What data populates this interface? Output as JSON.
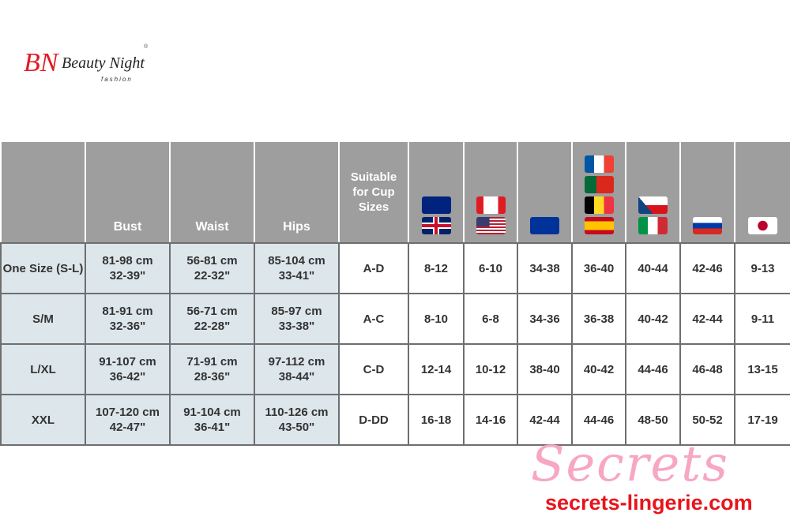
{
  "brand": {
    "logo_text": "Beauty Night",
    "logo_sub": "fashion",
    "monogram": "BN"
  },
  "table": {
    "headers": [
      "",
      "Bust",
      "Waist",
      "Hips",
      "Suitable for Cup Sizes"
    ],
    "flag_columns": [
      [
        "australia",
        "uk"
      ],
      [
        "canada",
        "usa"
      ],
      [
        "eu"
      ],
      [
        "france",
        "portugal",
        "belgium",
        "spain"
      ],
      [
        "czech",
        "italy"
      ],
      [
        "russia"
      ],
      [
        "japan"
      ]
    ],
    "rows": [
      {
        "size": "One Size (S-L)",
        "bust": [
          "81-98 cm",
          "32-39\""
        ],
        "waist": [
          "56-81 cm",
          "22-32\""
        ],
        "hips": [
          "85-104 cm",
          "33-41\""
        ],
        "cup": "A-D",
        "sizes": [
          "8-12",
          "6-10",
          "34-38",
          "36-40",
          "40-44",
          "42-46",
          "9-13"
        ]
      },
      {
        "size": "S/M",
        "bust": [
          "81-91 cm",
          "32-36\""
        ],
        "waist": [
          "56-71 cm",
          "22-28\""
        ],
        "hips": [
          "85-97 cm",
          "33-38\""
        ],
        "cup": "A-C",
        "sizes": [
          "8-10",
          "6-8",
          "34-36",
          "36-38",
          "40-42",
          "42-44",
          "9-11"
        ]
      },
      {
        "size": "L/XL",
        "bust": [
          "91-107 cm",
          "36-42\""
        ],
        "waist": [
          "71-91 cm",
          "28-36\""
        ],
        "hips": [
          "97-112 cm",
          "38-44\""
        ],
        "cup": "C-D",
        "sizes": [
          "12-14",
          "10-12",
          "38-40",
          "40-42",
          "44-46",
          "46-48",
          "13-15"
        ]
      },
      {
        "size": "XXL",
        "bust": [
          "107-120 cm",
          "42-47\""
        ],
        "waist": [
          "91-104 cm",
          "36-41\""
        ],
        "hips": [
          "110-126 cm",
          "43-50\""
        ],
        "cup": "D-DD",
        "sizes": [
          "16-18",
          "14-16",
          "42-44",
          "44-46",
          "48-50",
          "50-52",
          "17-19"
        ]
      }
    ]
  },
  "watermark": {
    "script": "Secrets",
    "url": "secrets-lingerie.com"
  },
  "colors": {
    "header": "#9e9e9e",
    "label_cell": "#dde6ea",
    "accent": "#e8141c"
  }
}
